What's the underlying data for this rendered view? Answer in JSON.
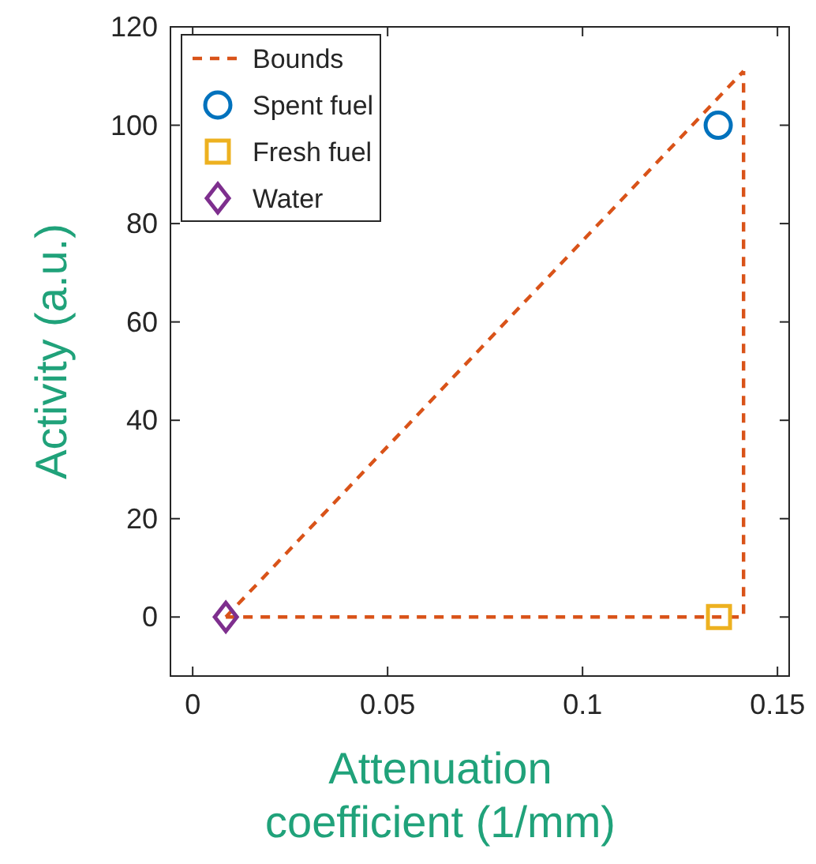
{
  "chart_data": {
    "type": "scatter",
    "xlabel": "Attenuation coefficient (1/mm)",
    "ylabel": "Activity (a.u.)",
    "xlim": [
      -0.0057,
      0.153
    ],
    "xticks": [
      0,
      0.05,
      0.1,
      0.15
    ],
    "ylim": [
      -12,
      120
    ],
    "yticks": [
      0,
      20,
      40,
      60,
      80,
      100,
      120
    ],
    "grid": false,
    "legend": "top left",
    "series": [
      {
        "name": "Bounds",
        "type": "line",
        "color": "#d95319",
        "line_style": "dashed",
        "marker": "none",
        "x": [
          0.0085,
          0.1413
        ],
        "values": [
          0,
          111
        ]
      },
      {
        "name": "Spent fuel",
        "color": "#0072bd",
        "marker": "circle",
        "x": [
          0.1348
        ],
        "values": [
          100
        ]
      },
      {
        "name": "Fresh fuel",
        "color": "#edb120",
        "marker": "square",
        "x": [
          0.135
        ],
        "values": [
          0
        ]
      },
      {
        "name": "Water",
        "color": "#7e2f8e",
        "marker": "diamond",
        "x": [
          0.0085
        ],
        "values": [
          0
        ]
      },
      {
        "type": "line",
        "color": "#d95319",
        "line_style": "dashed",
        "marker": "none",
        "x": [
          0.0085,
          0.1413,
          0.1413
        ],
        "values": [
          0,
          0,
          111
        ]
      }
    ]
  }
}
